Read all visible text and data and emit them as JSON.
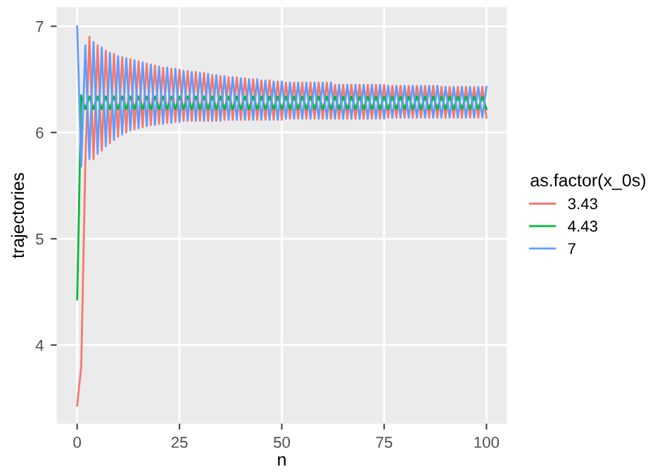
{
  "chart_data": {
    "type": "line",
    "xlabel": "n",
    "ylabel": "trajectories",
    "legend_title": "as.factor(x_0s)",
    "legend": "right",
    "grid": true,
    "x": [
      0,
      1,
      2,
      3,
      4,
      5,
      6,
      7,
      8,
      9,
      10,
      11,
      12,
      13,
      14,
      15,
      16,
      17,
      18,
      19,
      20,
      21,
      22,
      23,
      24,
      25,
      26,
      27,
      28,
      29,
      30,
      31,
      32,
      33,
      34,
      35,
      36,
      37,
      38,
      39,
      40,
      41,
      42,
      43,
      44,
      45,
      46,
      47,
      48,
      49,
      50,
      51,
      52,
      53,
      54,
      55,
      56,
      57,
      58,
      59,
      60,
      61,
      62,
      63,
      64,
      65,
      66,
      67,
      68,
      69,
      70,
      71,
      72,
      73,
      74,
      75,
      76,
      77,
      78,
      79,
      80,
      81,
      82,
      83,
      84,
      85,
      86,
      87,
      88,
      89,
      90,
      91,
      92,
      93,
      94,
      95,
      96,
      97,
      98,
      99,
      100
    ],
    "xlim": [
      -5,
      105
    ],
    "xticks": [
      0,
      25,
      50,
      75,
      100
    ],
    "ylim": [
      3.26,
      7.18
    ],
    "yticks": [
      4,
      5,
      6,
      7
    ],
    "series": [
      {
        "name": "3.43",
        "color": "#f8766d",
        "values": [
          3.43,
          3.8,
          5.72,
          6.9,
          5.75,
          6.82,
          5.83,
          6.77,
          5.9,
          6.74,
          5.96,
          6.71,
          6.0,
          6.69,
          6.03,
          6.67,
          6.05,
          6.65,
          6.07,
          6.63,
          6.08,
          6.61,
          6.09,
          6.6,
          6.1,
          6.59,
          6.11,
          6.58,
          6.11,
          6.57,
          6.11,
          6.56,
          6.11,
          6.54,
          6.11,
          6.53,
          6.12,
          6.52,
          6.12,
          6.52,
          6.12,
          6.51,
          6.12,
          6.5,
          6.12,
          6.49,
          6.12,
          6.49,
          6.12,
          6.48,
          6.12,
          6.47,
          6.13,
          6.47,
          6.13,
          6.47,
          6.13,
          6.47,
          6.13,
          6.47,
          6.13,
          6.47,
          6.13,
          6.45,
          6.13,
          6.45,
          6.13,
          6.45,
          6.13,
          6.45,
          6.13,
          6.45,
          6.13,
          6.45,
          6.13,
          6.45,
          6.14,
          6.44,
          6.14,
          6.44,
          6.14,
          6.44,
          6.14,
          6.44,
          6.14,
          6.44,
          6.14,
          6.44,
          6.14,
          6.43,
          6.14,
          6.43,
          6.14,
          6.43,
          6.14,
          6.43,
          6.14,
          6.43,
          6.14,
          6.43,
          6.14
        ]
      },
      {
        "name": "4.43",
        "color": "#00ba38",
        "values": [
          4.43,
          6.35,
          6.22,
          6.34,
          6.22,
          6.34,
          6.22,
          6.34,
          6.22,
          6.34,
          6.22,
          6.34,
          6.22,
          6.34,
          6.22,
          6.34,
          6.22,
          6.34,
          6.22,
          6.34,
          6.22,
          6.34,
          6.22,
          6.34,
          6.22,
          6.34,
          6.22,
          6.34,
          6.22,
          6.34,
          6.22,
          6.34,
          6.22,
          6.34,
          6.22,
          6.34,
          6.22,
          6.34,
          6.22,
          6.34,
          6.22,
          6.34,
          6.22,
          6.34,
          6.22,
          6.34,
          6.22,
          6.34,
          6.22,
          6.34,
          6.22,
          6.34,
          6.22,
          6.34,
          6.22,
          6.34,
          6.22,
          6.34,
          6.22,
          6.34,
          6.22,
          6.34,
          6.22,
          6.34,
          6.22,
          6.34,
          6.22,
          6.34,
          6.22,
          6.34,
          6.22,
          6.34,
          6.22,
          6.34,
          6.22,
          6.34,
          6.22,
          6.34,
          6.22,
          6.34,
          6.22,
          6.34,
          6.22,
          6.34,
          6.22,
          6.34,
          6.22,
          6.34,
          6.22,
          6.34,
          6.22,
          6.34,
          6.22,
          6.34,
          6.22,
          6.34,
          6.22,
          6.34,
          6.22,
          6.34,
          6.22
        ]
      },
      {
        "name": "7",
        "color": "#619cff",
        "values": [
          7,
          5.68,
          6.82,
          5.75,
          6.85,
          5.8,
          6.8,
          5.87,
          6.75,
          5.93,
          6.72,
          5.98,
          6.7,
          6.02,
          6.68,
          6.04,
          6.66,
          6.06,
          6.64,
          6.07,
          6.62,
          6.08,
          6.61,
          6.09,
          6.6,
          6.1,
          6.58,
          6.11,
          6.57,
          6.11,
          6.56,
          6.11,
          6.55,
          6.11,
          6.54,
          6.11,
          6.53,
          6.12,
          6.52,
          6.12,
          6.51,
          6.12,
          6.5,
          6.12,
          6.5,
          6.12,
          6.49,
          6.12,
          6.48,
          6.12,
          6.48,
          6.13,
          6.47,
          6.13,
          6.47,
          6.13,
          6.47,
          6.13,
          6.47,
          6.13,
          6.47,
          6.13,
          6.47,
          6.13,
          6.45,
          6.13,
          6.45,
          6.13,
          6.45,
          6.13,
          6.45,
          6.13,
          6.45,
          6.13,
          6.45,
          6.13,
          6.44,
          6.14,
          6.44,
          6.14,
          6.44,
          6.14,
          6.44,
          6.14,
          6.44,
          6.14,
          6.44,
          6.14,
          6.44,
          6.14,
          6.43,
          6.14,
          6.43,
          6.14,
          6.43,
          6.14,
          6.43,
          6.14,
          6.43,
          6.14,
          6.43
        ]
      }
    ]
  }
}
